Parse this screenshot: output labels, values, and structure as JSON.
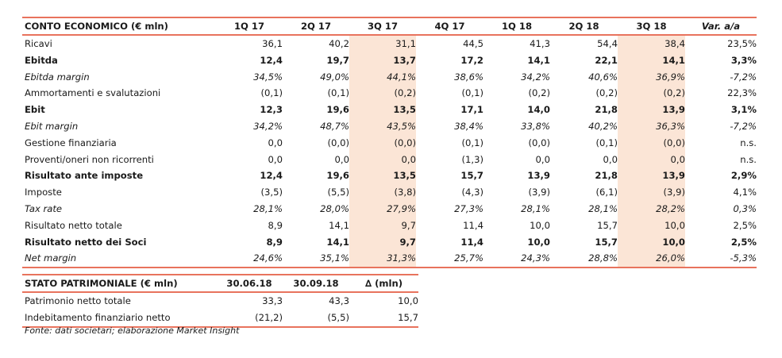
{
  "conto_economico": {
    "header": [
      "CONTO ECONOMICO (€ mln)",
      "1Q 17",
      "2Q 17",
      "3Q 17",
      "4Q 17",
      "1Q 18",
      "2Q 18",
      "3Q 18",
      "Var. a/a"
    ],
    "rows": [
      {
        "label": "Ricavi",
        "values": [
          "36,1",
          "40,2",
          "31,1",
          "44,5",
          "41,3",
          "54,4",
          "38,4",
          "23,5%"
        ]
      },
      {
        "label": "Ebitda",
        "values": [
          "12,4",
          "19,7",
          "13,7",
          "17,2",
          "14,1",
          "22,1",
          "14,1",
          "3,3%"
        ]
      },
      {
        "label": "Ebitda margin",
        "values": [
          "34,5%",
          "49,0%",
          "44,1%",
          "38,6%",
          "34,2%",
          "40,6%",
          "36,9%",
          "-7,2%"
        ]
      },
      {
        "label": "Ammortamenti e svalutazioni",
        "values": [
          "(0,1)",
          "(0,1)",
          "(0,2)",
          "(0,1)",
          "(0,2)",
          "(0,2)",
          "(0,2)",
          "22,3%"
        ]
      },
      {
        "label": "Ebit",
        "values": [
          "12,3",
          "19,6",
          "13,5",
          "17,1",
          "14,0",
          "21,8",
          "13,9",
          "3,1%"
        ]
      },
      {
        "label": "Ebit margin",
        "values": [
          "34,2%",
          "48,7%",
          "43,5%",
          "38,4%",
          "33,8%",
          "40,2%",
          "36,3%",
          "-7,2%"
        ]
      },
      {
        "label": "Gestione finanziaria",
        "values": [
          "0,0",
          "(0,0)",
          "(0,0)",
          "(0,1)",
          "(0,0)",
          "(0,1)",
          "(0,0)",
          "n.s."
        ]
      },
      {
        "label": "Proventi/oneri non ricorrenti",
        "values": [
          "0,0",
          "0,0",
          "0,0",
          "(1,3)",
          "0,0",
          "0,0",
          "0,0",
          "n.s."
        ]
      },
      {
        "label": "Risultato ante imposte",
        "values": [
          "12,4",
          "19,6",
          "13,5",
          "15,7",
          "13,9",
          "21,8",
          "13,9",
          "2,9%"
        ]
      },
      {
        "label": "Imposte",
        "values": [
          "(3,5)",
          "(5,5)",
          "(3,8)",
          "(4,3)",
          "(3,9)",
          "(6,1)",
          "(3,9)",
          "4,1%"
        ]
      },
      {
        "label": "Tax rate",
        "values": [
          "28,1%",
          "28,0%",
          "27,9%",
          "27,3%",
          "28,1%",
          "28,1%",
          "28,2%",
          "0,3%"
        ]
      },
      {
        "label": "Risultato netto totale",
        "values": [
          "8,9",
          "14,1",
          "9,7",
          "11,4",
          "10,0",
          "15,7",
          "10,0",
          "2,5%"
        ]
      },
      {
        "label": "Risultato netto dei Soci",
        "values": [
          "8,9",
          "14,1",
          "9,7",
          "11,4",
          "10,0",
          "15,7",
          "10,0",
          "2,5%"
        ]
      },
      {
        "label": "Net margin",
        "values": [
          "24,6%",
          "35,1%",
          "31,3%",
          "25,7%",
          "24,3%",
          "28,8%",
          "26,0%",
          "-5,3%"
        ]
      }
    ]
  },
  "stato_patrimoniale": {
    "header": [
      "STATO PATRIMONIALE (€ mln)",
      "30.06.18",
      "30.09.18",
      "∆ (mln)"
    ],
    "rows": [
      {
        "label": "Patrimonio netto totale",
        "values": [
          "33,3",
          "43,3",
          "10,0"
        ]
      },
      {
        "label": "Indebitamento finanziario netto",
        "values": [
          "(21,2)",
          "(5,5)",
          "15,7"
        ]
      }
    ]
  },
  "source": "Fonte: dati societari; elaborazione Market Insight",
  "colors": {
    "accent_rule": "#e8735d",
    "highlight": "#fbe5d6"
  }
}
